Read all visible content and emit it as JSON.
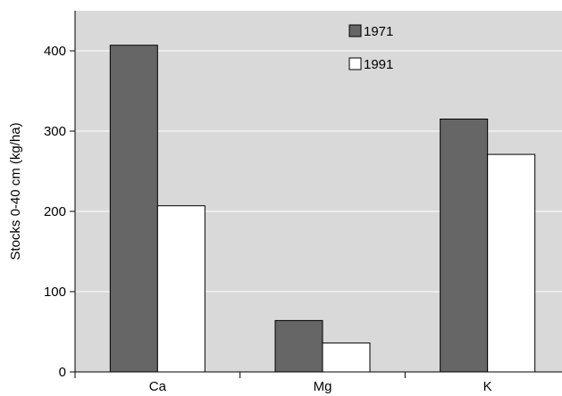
{
  "chart_data": {
    "type": "bar",
    "title": "",
    "xlabel": "",
    "ylabel": "Stocks 0-40 cm (kg/ha)",
    "categories": [
      "Ca",
      "Mg",
      "K"
    ],
    "series": [
      {
        "name": "1971",
        "values": [
          407,
          64,
          315
        ],
        "color": "#666666"
      },
      {
        "name": "1991",
        "values": [
          207,
          36,
          271
        ],
        "color": "#ffffff"
      }
    ],
    "ylim": [
      0,
      450
    ],
    "yticks": [
      0,
      100,
      200,
      300,
      400
    ],
    "grid": true,
    "legend": "top-center",
    "plot_background": "#d9d9d9",
    "grid_color": "#ffffff"
  }
}
